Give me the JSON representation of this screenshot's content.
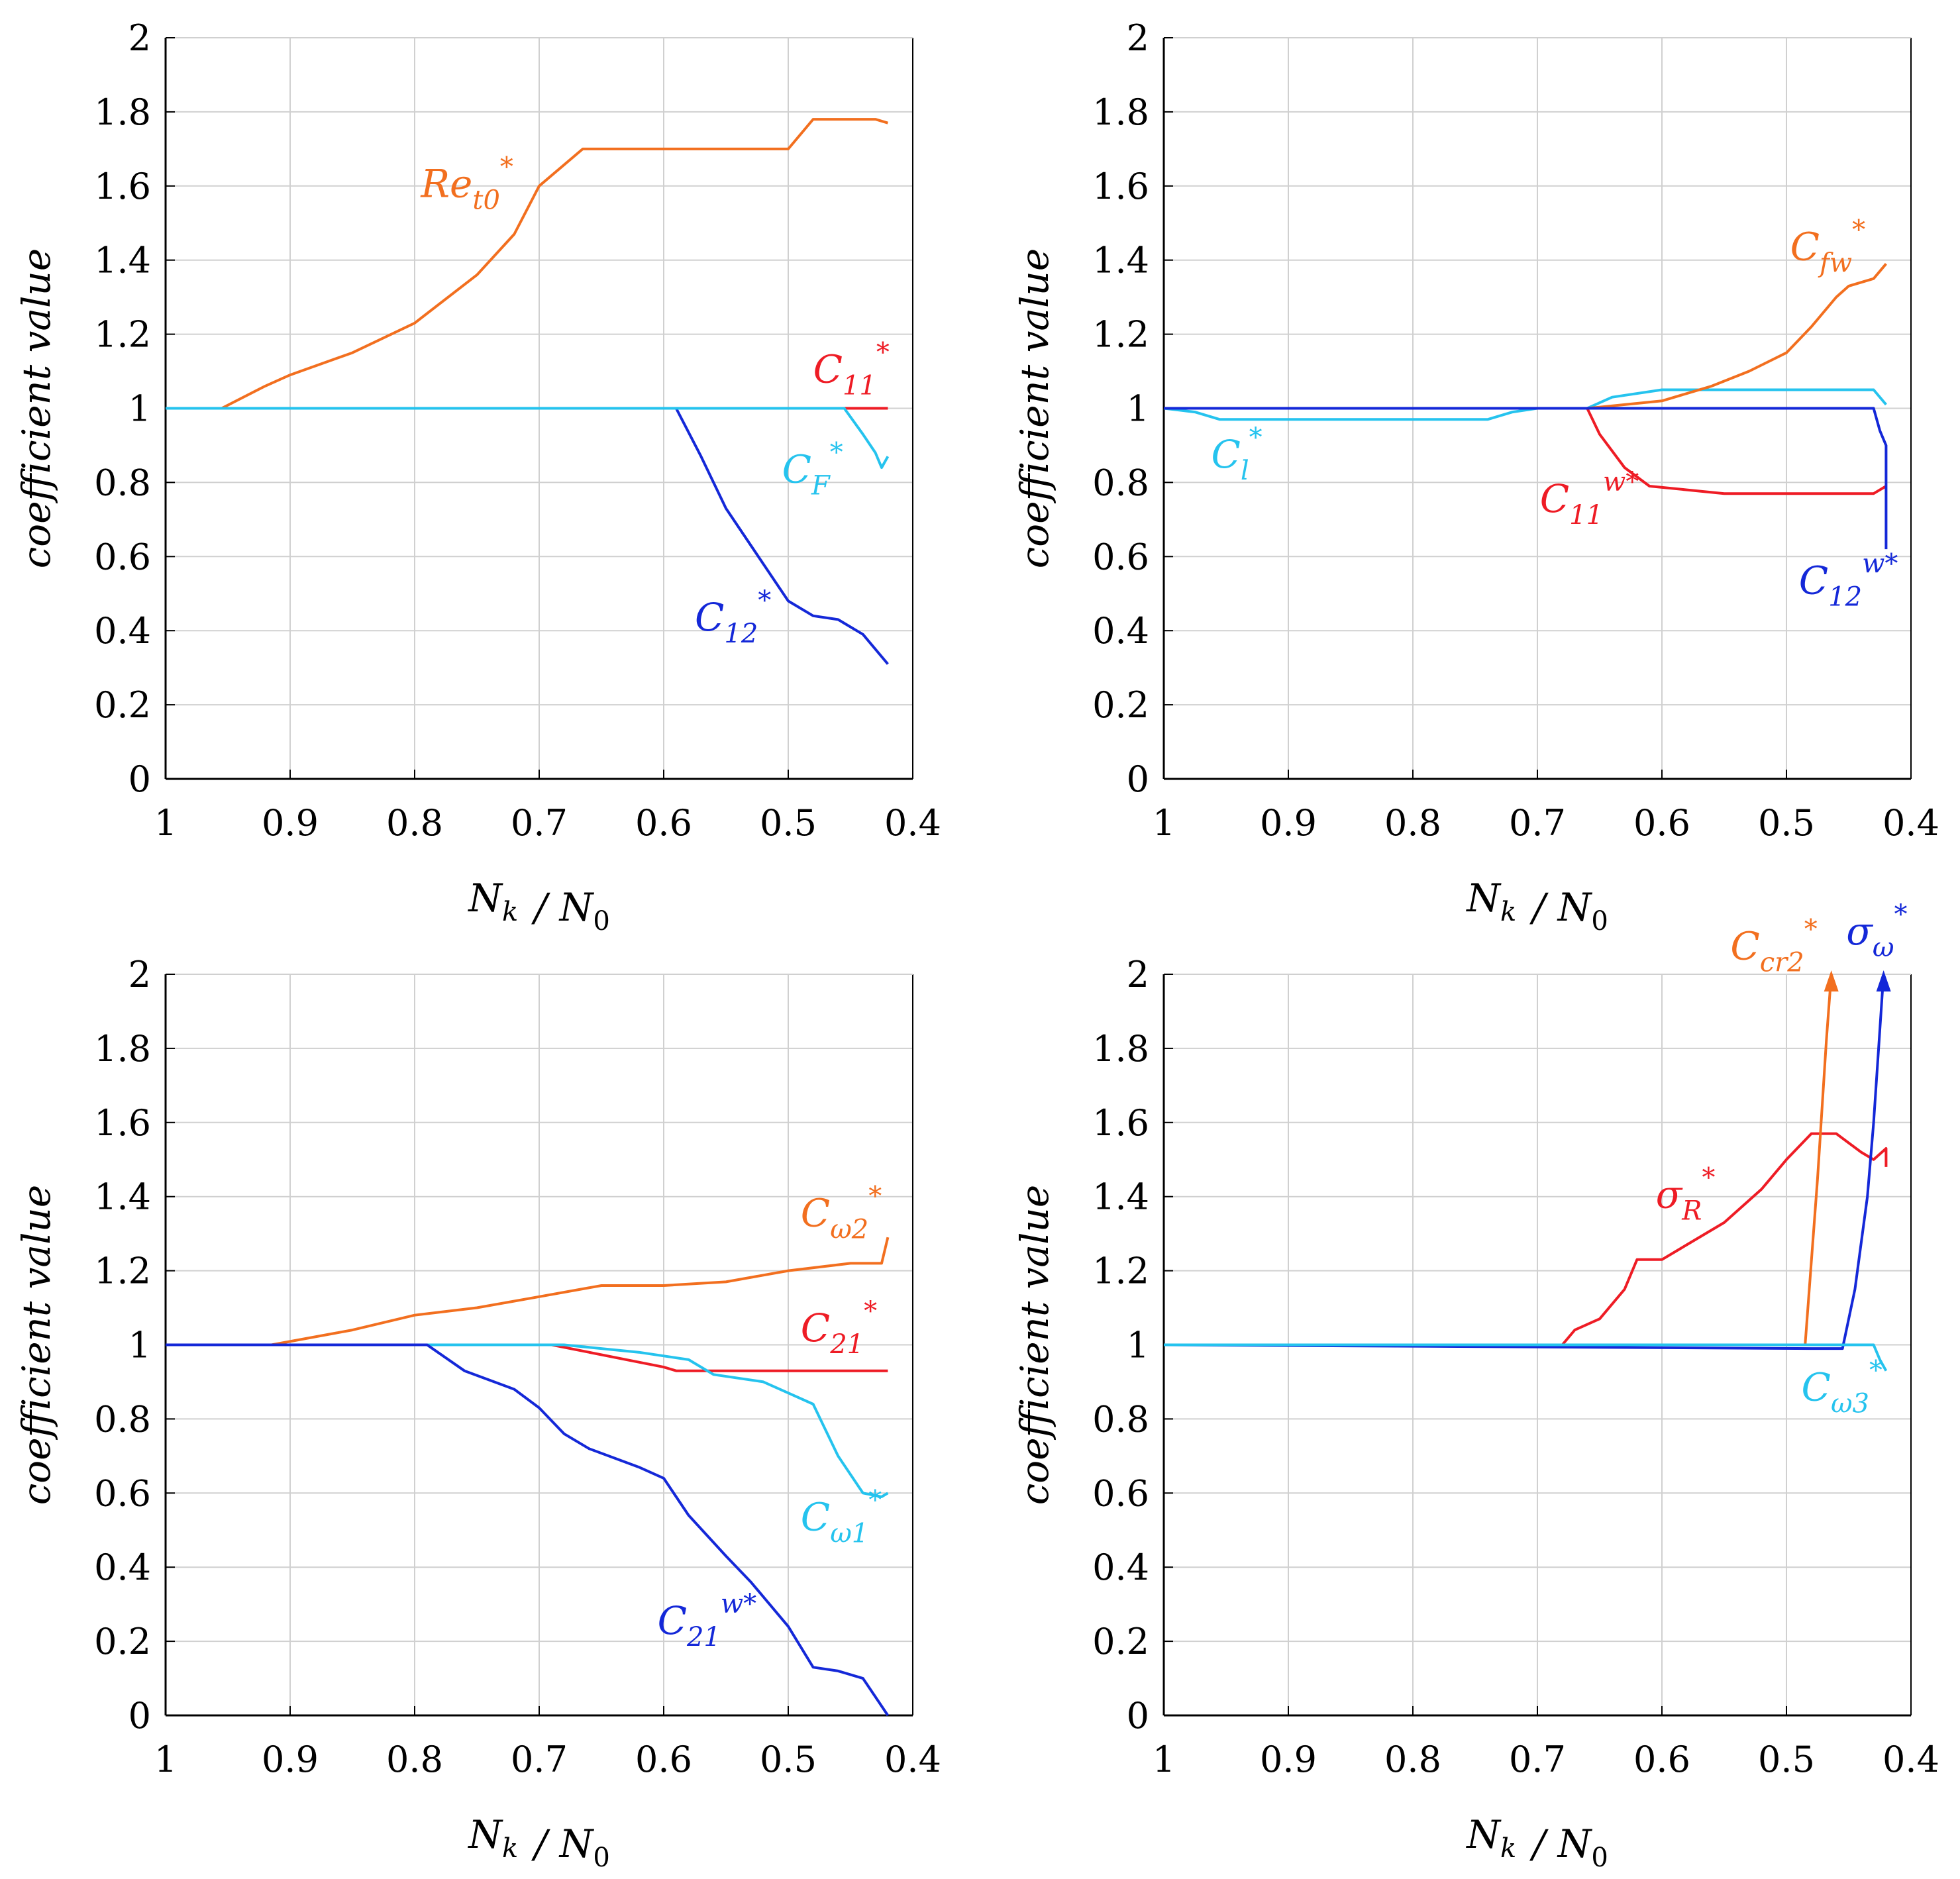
{
  "figure": {
    "colors": {
      "orange": "#f26f1f",
      "red": "#ee1c25",
      "blue": "#1428d8",
      "cyan": "#25c3ee",
      "grid": "#d0d0d0",
      "axis": "#000000"
    }
  },
  "chart_data": [
    {
      "type": "line",
      "panel": "top-left",
      "xlabel": "N_k / N_0",
      "ylabel": "coefficient value",
      "xlim": [
        1,
        0.4
      ],
      "ylim": [
        0,
        2
      ],
      "x_ticks": [
        "1",
        "0.9",
        "0.8",
        "0.7",
        "0.6",
        "0.5",
        "0.4"
      ],
      "y_ticks": [
        "0",
        "0.2",
        "0.4",
        "0.6",
        "0.8",
        "1",
        "1.2",
        "1.4",
        "1.6",
        "1.8",
        "2"
      ],
      "series": [
        {
          "name": "Re_t0*",
          "label_main": "Re",
          "label_sub": "t0",
          "label_sup": "*",
          "color": "#f26f1f",
          "label_at": [
            0.795,
            1.57
          ],
          "x": [
            1,
            0.955,
            0.92,
            0.9,
            0.85,
            0.8,
            0.75,
            0.72,
            0.7,
            0.665,
            0.6,
            0.5,
            0.49,
            0.48,
            0.45,
            0.43,
            0.42
          ],
          "y": [
            1,
            1,
            1.06,
            1.09,
            1.15,
            1.23,
            1.36,
            1.47,
            1.6,
            1.7,
            1.7,
            1.7,
            1.74,
            1.78,
            1.78,
            1.78,
            1.77
          ]
        },
        {
          "name": "C_11*",
          "label_main": "C",
          "label_sub": "11",
          "label_sup": "*",
          "color": "#ee1c25",
          "label_at": [
            0.48,
            1.07
          ],
          "x": [
            1,
            0.42
          ],
          "y": [
            1,
            1
          ]
        },
        {
          "name": "C_12*",
          "label_main": "C",
          "label_sub": "12",
          "label_sup": "*",
          "color": "#1428d8",
          "label_at": [
            0.575,
            0.4
          ],
          "x": [
            1,
            0.59,
            0.57,
            0.55,
            0.52,
            0.5,
            0.48,
            0.46,
            0.44,
            0.42
          ],
          "y": [
            1,
            1,
            0.87,
            0.73,
            0.58,
            0.48,
            0.44,
            0.43,
            0.39,
            0.31
          ]
        },
        {
          "name": "C_F*",
          "label_main": "C",
          "label_sub": "F",
          "label_sup": "*",
          "color": "#25c3ee",
          "label_at": [
            0.505,
            0.8
          ],
          "x": [
            1,
            0.455,
            0.44,
            0.43,
            0.425,
            0.42
          ],
          "y": [
            1,
            1,
            0.93,
            0.88,
            0.84,
            0.87
          ]
        }
      ]
    },
    {
      "type": "line",
      "panel": "top-right",
      "xlabel": "N_k / N_0",
      "ylabel": "coefficient value",
      "xlim": [
        1,
        0.4
      ],
      "ylim": [
        0,
        2
      ],
      "x_ticks": [
        "1",
        "0.9",
        "0.8",
        "0.7",
        "0.6",
        "0.5",
        "0.4"
      ],
      "y_ticks": [
        "0",
        "0.2",
        "0.4",
        "0.6",
        "0.8",
        "1",
        "1.2",
        "1.4",
        "1.6",
        "1.8",
        "2"
      ],
      "series": [
        {
          "name": "C_l*",
          "label_main": "C",
          "label_sub": "l",
          "label_sup": "*",
          "color": "#25c3ee",
          "label_at": [
            0.962,
            0.84
          ],
          "x": [
            1,
            0.975,
            0.955,
            0.74,
            0.72,
            0.7,
            0.66,
            0.64,
            0.6,
            0.45,
            0.43,
            0.42
          ],
          "y": [
            1,
            0.99,
            0.97,
            0.97,
            0.99,
            1,
            1,
            1.03,
            1.05,
            1.05,
            1.05,
            1.01
          ]
        },
        {
          "name": "C_fw*",
          "label_main": "C",
          "label_sub": "fw",
          "label_sup": "*",
          "color": "#f26f1f",
          "label_at": [
            0.497,
            1.4
          ],
          "x": [
            1,
            0.66,
            0.6,
            0.56,
            0.53,
            0.5,
            0.48,
            0.46,
            0.45,
            0.43,
            0.42
          ],
          "y": [
            1,
            1,
            1.02,
            1.06,
            1.1,
            1.15,
            1.22,
            1.3,
            1.33,
            1.35,
            1.39
          ]
        },
        {
          "name": "C_11^w*",
          "label_main": "C",
          "label_sub": "11",
          "label_sup": "w*",
          "color": "#ee1c25",
          "label_at": [
            0.698,
            0.72
          ],
          "x": [
            1,
            0.66,
            0.65,
            0.63,
            0.61,
            0.58,
            0.55,
            0.5,
            0.43,
            0.42
          ],
          "y": [
            1,
            1,
            0.93,
            0.84,
            0.79,
            0.78,
            0.77,
            0.77,
            0.77,
            0.79
          ]
        },
        {
          "name": "C_12^w*",
          "label_main": "C",
          "label_sub": "12",
          "label_sup": "w*",
          "color": "#1428d8",
          "label_at": [
            0.49,
            0.5
          ],
          "x": [
            1,
            0.6,
            0.43,
            0.425,
            0.42,
            0.42
          ],
          "y": [
            1,
            1,
            1,
            0.94,
            0.9,
            0.62
          ]
        }
      ]
    },
    {
      "type": "line",
      "panel": "bottom-left",
      "xlabel": "N_k / N_0",
      "ylabel": "coefficient value",
      "xlim": [
        1,
        0.4
      ],
      "ylim": [
        0,
        2
      ],
      "x_ticks": [
        "1",
        "0.9",
        "0.8",
        "0.7",
        "0.6",
        "0.5",
        "0.4"
      ],
      "y_ticks": [
        "0",
        "0.2",
        "0.4",
        "0.6",
        "0.8",
        "1",
        "1.2",
        "1.4",
        "1.6",
        "1.8",
        "2"
      ],
      "series": [
        {
          "name": "C_w2*",
          "label_main": "C",
          "label_sub": "ω2",
          "label_sup": "*",
          "color": "#f26f1f",
          "label_at": [
            0.49,
            1.32
          ],
          "x": [
            1,
            0.915,
            0.85,
            0.8,
            0.75,
            0.7,
            0.65,
            0.6,
            0.55,
            0.5,
            0.45,
            0.425,
            0.42
          ],
          "y": [
            1,
            1,
            1.04,
            1.08,
            1.1,
            1.13,
            1.16,
            1.16,
            1.17,
            1.2,
            1.22,
            1.22,
            1.29
          ]
        },
        {
          "name": "C_21*",
          "label_main": "C",
          "label_sub": "21",
          "label_sup": "*",
          "color": "#ee1c25",
          "label_at": [
            0.49,
            1.01
          ],
          "x": [
            1,
            0.69,
            0.66,
            0.63,
            0.6,
            0.59,
            0.5,
            0.42
          ],
          "y": [
            1,
            1,
            0.98,
            0.96,
            0.94,
            0.93,
            0.93,
            0.93
          ]
        },
        {
          "name": "C_w1*",
          "label_main": "C",
          "label_sub": "ω1",
          "label_sup": "*",
          "color": "#25c3ee",
          "label_at": [
            0.49,
            0.5
          ],
          "x": [
            1,
            0.68,
            0.62,
            0.58,
            0.56,
            0.52,
            0.5,
            0.48,
            0.46,
            0.44,
            0.425,
            0.42
          ],
          "y": [
            1,
            1,
            0.98,
            0.96,
            0.92,
            0.9,
            0.87,
            0.84,
            0.7,
            0.6,
            0.59,
            0.6
          ]
        },
        {
          "name": "C_21^w*",
          "label_main": "C",
          "label_sub": "21",
          "label_sup": "w*",
          "color": "#1428d8",
          "label_at": [
            0.605,
            0.22
          ],
          "x": [
            1,
            0.79,
            0.76,
            0.72,
            0.7,
            0.68,
            0.66,
            0.62,
            0.6,
            0.58,
            0.55,
            0.53,
            0.51,
            0.5,
            0.48,
            0.46,
            0.44,
            0.43,
            0.42
          ],
          "y": [
            1,
            1,
            0.93,
            0.88,
            0.83,
            0.76,
            0.72,
            0.67,
            0.64,
            0.54,
            0.43,
            0.36,
            0.28,
            0.24,
            0.13,
            0.12,
            0.1,
            0.05,
            0.0
          ]
        }
      ]
    },
    {
      "type": "line",
      "panel": "bottom-right",
      "xlabel": "N_k / N_0",
      "ylabel": "coefficient value",
      "xlim": [
        1,
        0.4
      ],
      "ylim": [
        0,
        2
      ],
      "x_ticks": [
        "1",
        "0.9",
        "0.8",
        "0.7",
        "0.6",
        "0.5",
        "0.4"
      ],
      "y_ticks": [
        "0",
        "0.2",
        "0.4",
        "0.6",
        "0.8",
        "1",
        "1.2",
        "1.4",
        "1.6",
        "1.8",
        "2"
      ],
      "series": [
        {
          "name": "σ_R*",
          "label_main": "σ",
          "label_sub": "R",
          "label_sup": "*",
          "color": "#ee1c25",
          "label_at": [
            0.605,
            1.37
          ],
          "x": [
            1,
            0.68,
            0.67,
            0.65,
            0.63,
            0.62,
            0.6,
            0.58,
            0.55,
            0.52,
            0.5,
            0.48,
            0.46,
            0.44,
            0.43,
            0.42,
            0.42
          ],
          "y": [
            1,
            1,
            1.04,
            1.07,
            1.15,
            1.23,
            1.23,
            1.27,
            1.33,
            1.42,
            1.5,
            1.57,
            1.57,
            1.52,
            1.5,
            1.53,
            1.48
          ]
        },
        {
          "name": "C_cr2*",
          "label_main": "C",
          "label_sub": "cr2",
          "label_sup": "*",
          "color": "#f26f1f",
          "label_at": [
            0.545,
            2.04
          ],
          "x": [
            1,
            0.485,
            0.475,
            0.468,
            0.464
          ],
          "y": [
            1,
            1,
            1.45,
            1.82,
            2.0
          ]
        },
        {
          "name": "σ_ω*",
          "label_main": "σ",
          "label_sub": "ω",
          "label_sup": "*",
          "color": "#1428d8",
          "label_at": [
            0.452,
            2.08
          ],
          "x": [
            1,
            0.48,
            0.455,
            0.445,
            0.435,
            0.43,
            0.425,
            0.422
          ],
          "y": [
            1,
            0.99,
            0.99,
            1.15,
            1.4,
            1.6,
            1.85,
            2.0
          ]
        },
        {
          "name": "C_ω3*",
          "label_main": "C",
          "label_sub": "ω3",
          "label_sup": "*",
          "color": "#25c3ee",
          "label_at": [
            0.488,
            0.85
          ],
          "x": [
            1,
            0.43,
            0.425,
            0.42
          ],
          "y": [
            1,
            1,
            0.96,
            0.93
          ]
        }
      ]
    }
  ]
}
